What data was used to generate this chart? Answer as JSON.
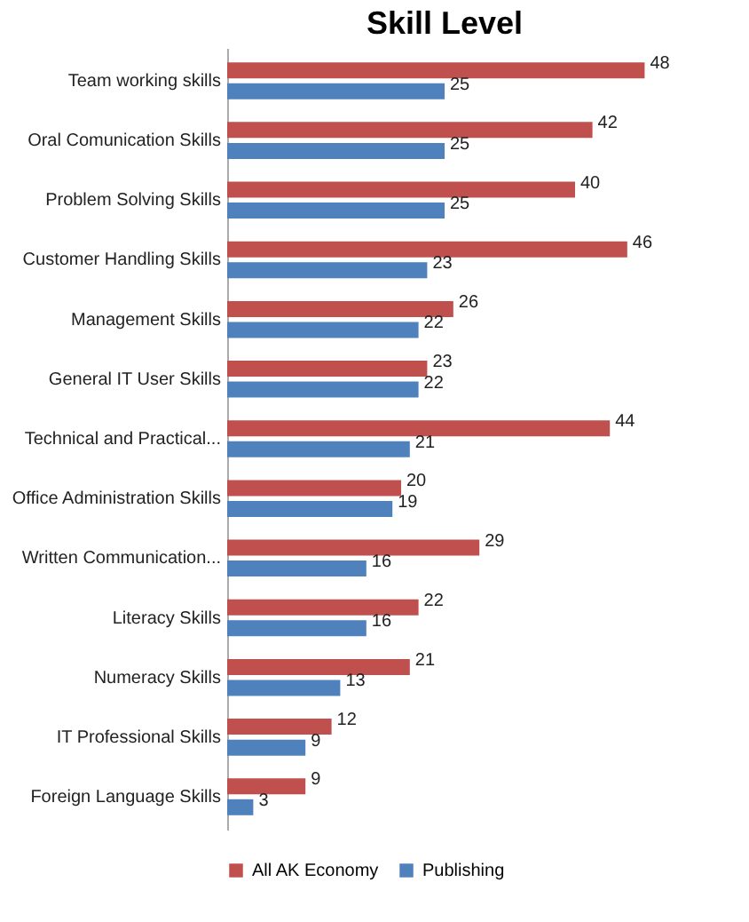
{
  "chart_data": {
    "type": "bar",
    "orientation": "horizontal",
    "title": "Skill Level",
    "categories": [
      "Team working skills",
      "Oral Comunication Skills",
      "Problem Solving Skills",
      "Customer Handling Skills",
      "Management Skills",
      "General IT User Skills",
      "Technical and Practical...",
      "Office Administration Skills",
      "Written Communication...",
      "Literacy Skills",
      "Numeracy Skills",
      "IT Professional Skills",
      "Foreign Language Skills"
    ],
    "series": [
      {
        "name": "All AK Economy",
        "color": "#c0504d",
        "values": [
          48,
          42,
          40,
          46,
          26,
          23,
          44,
          20,
          29,
          22,
          21,
          12,
          9
        ]
      },
      {
        "name": "Publishing",
        "color": "#4f81bd",
        "values": [
          25,
          25,
          25,
          23,
          22,
          22,
          21,
          19,
          16,
          16,
          13,
          9,
          3
        ]
      }
    ],
    "data_labels": true,
    "legend": "bottom",
    "tick_labels": "y"
  }
}
